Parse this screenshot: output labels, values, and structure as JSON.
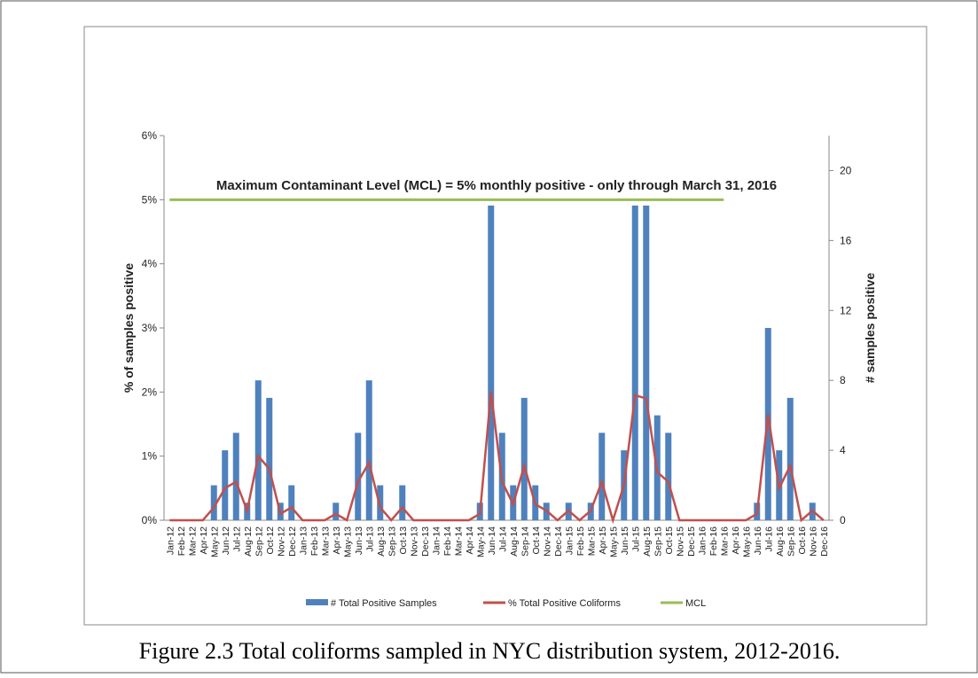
{
  "chart_data": {
    "type": "bar-line",
    "annotation": "Maximum Contaminant Level (MCL) = 5% monthly positive - only through March 31, 2016",
    "ylabel": "% of samples positive",
    "y2label": "# samples positive",
    "caption": "Figure 2.3     Total coliforms sampled in NYC distribution system, 2012-2016.",
    "categories": [
      "Jan-12",
      "Feb-12",
      "Mar-12",
      "Apr-12",
      "May-12",
      "Jun-12",
      "Jul-12",
      "Aug-12",
      "Sep-12",
      "Oct-12",
      "Nov-12",
      "Dec-12",
      "Jan-13",
      "Feb-13",
      "Mar-13",
      "Apr-13",
      "May-13",
      "Jun-13",
      "Jul-13",
      "Aug-13",
      "Sep-13",
      "Oct-13",
      "Nov-13",
      "Dec-13",
      "Jan-14",
      "Feb-14",
      "Mar-14",
      "Apr-14",
      "May-14",
      "Jun-14",
      "Jul-14",
      "Aug-14",
      "Sep-14",
      "Oct-14",
      "Nov-14",
      "Dec-14",
      "Jan-15",
      "Feb-15",
      "Mar-15",
      "Apr-15",
      "May-15",
      "Jun-15",
      "Jul-15",
      "Aug-15",
      "Sep-15",
      "Oct-15",
      "Nov-15",
      "Dec-15",
      "Jan-16",
      "Feb-16",
      "Mar-16",
      "Apr-16",
      "May-16",
      "Jun-16",
      "Jul-16",
      "Aug-16",
      "Sep-16",
      "Oct-16",
      "Nov-16",
      "Dec-16"
    ],
    "series": [
      {
        "name": "# Total Positive Samples",
        "type": "bar",
        "axis": "y2",
        "color": "#4f81bd",
        "values": [
          0,
          0,
          0,
          0,
          2,
          4,
          5,
          1,
          8,
          7,
          1,
          2,
          0,
          0,
          0,
          1,
          0,
          5,
          8,
          2,
          0,
          2,
          0,
          0,
          0,
          0,
          0,
          0,
          1,
          18,
          5,
          2,
          7,
          2,
          1,
          0,
          1,
          0,
          1,
          5,
          0,
          4,
          18,
          18,
          6,
          5,
          0,
          0,
          0,
          0,
          0,
          0,
          0,
          1,
          11,
          4,
          7,
          0,
          1,
          0
        ]
      },
      {
        "name": "% Total Positive Coliforms",
        "type": "line",
        "axis": "y",
        "color": "#c0504d",
        "values": [
          0,
          0,
          0,
          0,
          0.2,
          0.5,
          0.6,
          0.15,
          1.0,
          0.8,
          0.1,
          0.2,
          0,
          0,
          0,
          0.1,
          0,
          0.6,
          0.9,
          0.2,
          0,
          0.2,
          0,
          0,
          0,
          0,
          0,
          0,
          0.1,
          2.0,
          0.6,
          0.25,
          0.85,
          0.25,
          0.15,
          0,
          0.15,
          0,
          0.15,
          0.6,
          0,
          0.55,
          1.95,
          1.9,
          0.75,
          0.6,
          0,
          0,
          0,
          0,
          0,
          0,
          0,
          0.1,
          1.65,
          0.5,
          0.85,
          0,
          0.15,
          0
        ]
      },
      {
        "name": "MCL",
        "type": "line",
        "axis": "y",
        "color": "#9bbb59",
        "values": [
          5,
          5,
          5,
          5,
          5,
          5,
          5,
          5,
          5,
          5,
          5,
          5,
          5,
          5,
          5,
          5,
          5,
          5,
          5,
          5,
          5,
          5,
          5,
          5,
          5,
          5,
          5,
          5,
          5,
          5,
          5,
          5,
          5,
          5,
          5,
          5,
          5,
          5,
          5,
          5,
          5,
          5,
          5,
          5,
          5,
          5,
          5,
          5,
          5,
          5,
          5,
          null,
          null,
          null,
          null,
          null,
          null,
          null,
          null,
          null
        ]
      }
    ],
    "ylim": [
      0,
      6
    ],
    "yticks": [
      {
        "value": 0,
        "label": "0%"
      },
      {
        "value": 1,
        "label": "1%"
      },
      {
        "value": 2,
        "label": "2%"
      },
      {
        "value": 3,
        "label": "3%"
      },
      {
        "value": 4,
        "label": "4%"
      },
      {
        "value": 5,
        "label": "5%"
      },
      {
        "value": 6,
        "label": "6%"
      }
    ],
    "y2lim": [
      0,
      22
    ],
    "y2ticks": [
      0,
      4,
      8,
      12,
      16,
      20
    ],
    "legend": "bottom"
  }
}
